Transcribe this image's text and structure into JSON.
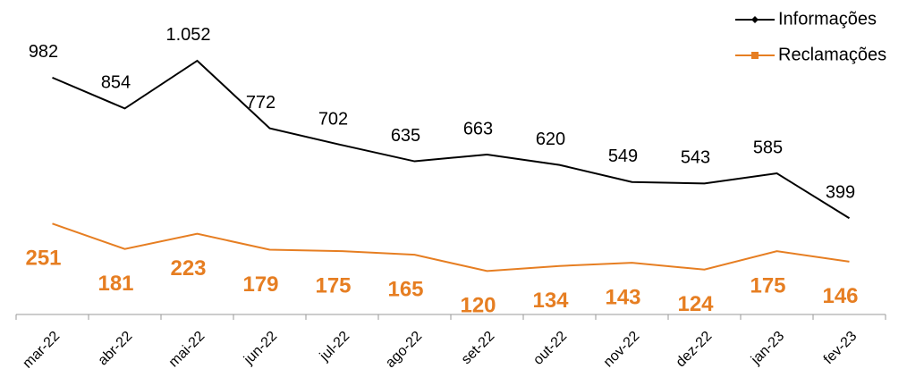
{
  "chart_data": {
    "type": "line",
    "categories": [
      "mar-22",
      "abr-22",
      "mai-22",
      "jun-22",
      "jul-22",
      "ago-22",
      "set-22",
      "out-22",
      "nov-22",
      "dez-22",
      "jan-23",
      "fev-23"
    ],
    "series": [
      {
        "name": "Informações",
        "color": "#000000",
        "marker": "diamond",
        "values": [
          982,
          854,
          1052,
          772,
          702,
          635,
          663,
          620,
          549,
          543,
          585,
          399
        ],
        "value_labels": [
          "982",
          "854",
          "1.052",
          "772",
          "702",
          "635",
          "663",
          "620",
          "549",
          "543",
          "585",
          "399"
        ]
      },
      {
        "name": "Reclamações",
        "color": "#e67e22",
        "marker": "square",
        "axis": "y2",
        "values": [
          251,
          181,
          223,
          179,
          175,
          165,
          120,
          134,
          143,
          124,
          175,
          146
        ]
      }
    ],
    "ylim": [
      0,
      1200
    ],
    "y2lim": [
      0,
      800
    ],
    "legend": "top-right"
  }
}
